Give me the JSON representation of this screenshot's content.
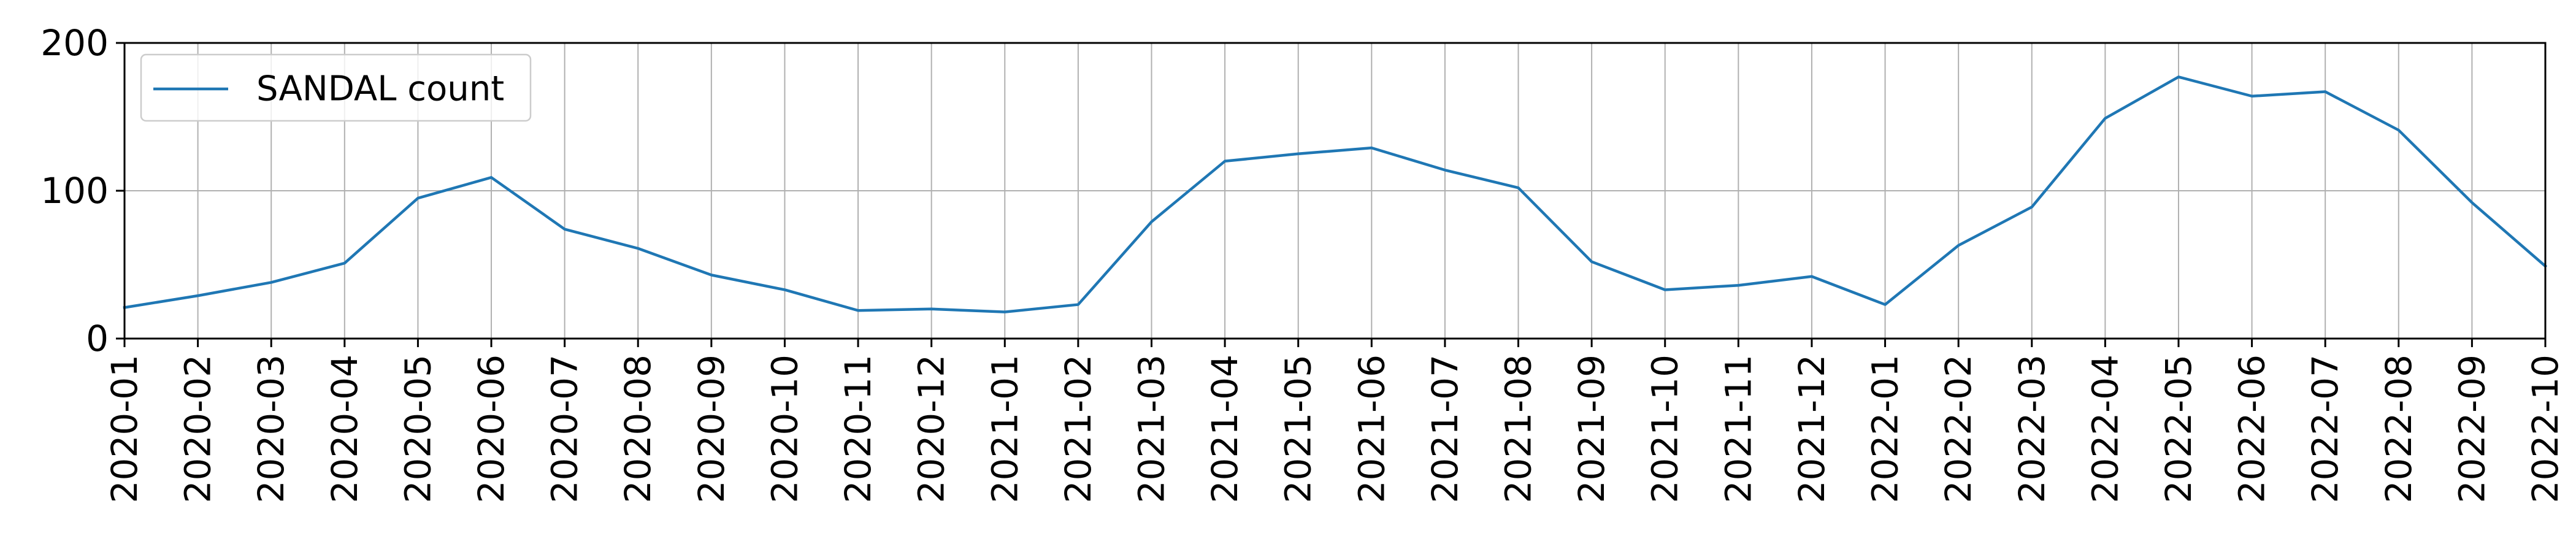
{
  "chart_data": {
    "type": "line",
    "x": [
      "2020-01",
      "2020-02",
      "2020-03",
      "2020-04",
      "2020-05",
      "2020-06",
      "2020-07",
      "2020-08",
      "2020-09",
      "2020-10",
      "2020-11",
      "2020-12",
      "2021-01",
      "2021-02",
      "2021-03",
      "2021-04",
      "2021-05",
      "2021-06",
      "2021-07",
      "2021-08",
      "2021-09",
      "2021-10",
      "2021-11",
      "2021-12",
      "2022-01",
      "2022-02",
      "2022-03",
      "2022-04",
      "2022-05",
      "2022-06",
      "2022-07",
      "2022-08",
      "2022-09",
      "2022-10"
    ],
    "series": [
      {
        "name": "SANDAL count",
        "color": "#1f77b4",
        "values": [
          21,
          29,
          38,
          51,
          95,
          109,
          74,
          61,
          43,
          33,
          19,
          20,
          18,
          23,
          79,
          120,
          125,
          129,
          114,
          102,
          52,
          33,
          36,
          42,
          23,
          63,
          89,
          149,
          177,
          164,
          167,
          141,
          92,
          49
        ]
      }
    ],
    "ylim": [
      0,
      200
    ],
    "yticks": [
      0,
      100,
      200
    ],
    "grid": true,
    "legend_loc": "upper-left",
    "title": "",
    "xlabel": "",
    "ylabel": ""
  }
}
